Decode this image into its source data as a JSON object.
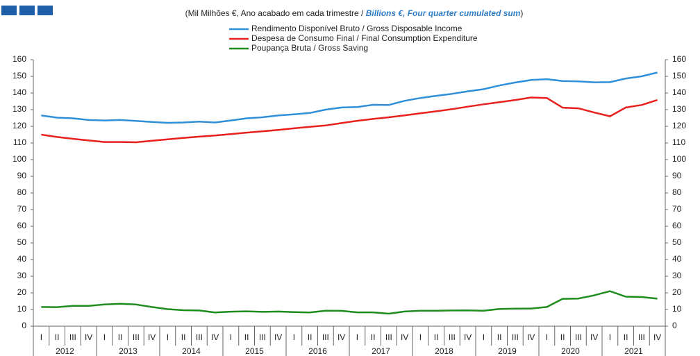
{
  "chart_data": {
    "type": "line",
    "subtitle": [
      "(Mil Milhões €, Ano acabado em cada trimestre / ",
      "Billions €, Four quarter cumulated sum",
      ")"
    ],
    "categories": [
      "I",
      "II",
      "III",
      "IV",
      "I",
      "II",
      "III",
      "IV",
      "I",
      "II",
      "III",
      "IV",
      "I",
      "II",
      "III",
      "IV",
      "I",
      "II",
      "III",
      "IV",
      "I",
      "II",
      "III",
      "IV",
      "I",
      "II",
      "III",
      "IV",
      "I",
      "II",
      "III",
      "IV",
      "I",
      "II",
      "III",
      "IV",
      "I",
      "II",
      "III",
      "IV"
    ],
    "years": [
      "2012",
      "2013",
      "2014",
      "2015",
      "2016",
      "2017",
      "2018",
      "2019",
      "2020",
      "2021"
    ],
    "series": [
      {
        "name": "Rendimento Disponível Bruto / Gross Disposable Income",
        "color": "#2f8fd8",
        "values": [
          126.5,
          125.2,
          124.8,
          123.8,
          123.5,
          123.8,
          123.2,
          122.6,
          122.1,
          122.3,
          122.8,
          122.3,
          123.5,
          124.8,
          125.4,
          126.5,
          127.2,
          128.0,
          130.0,
          131.3,
          131.6,
          132.9,
          132.8,
          135.3,
          137.0,
          138.3,
          139.5,
          141.0,
          142.3,
          144.5,
          146.3,
          147.8,
          148.3,
          147.2,
          147.0,
          146.4,
          146.5,
          148.7,
          150.0,
          152.3
        ]
      },
      {
        "name": "Despesa de Consumo Final / Final Consumption Expenditure",
        "color": "#e8201e",
        "values": [
          115.0,
          113.6,
          112.5,
          111.5,
          110.6,
          110.6,
          110.4,
          111.3,
          112.2,
          113.0,
          113.8,
          114.5,
          115.3,
          116.2,
          117.0,
          117.8,
          118.8,
          119.7,
          120.5,
          121.9,
          123.3,
          124.4,
          125.4,
          126.6,
          127.8,
          129.0,
          130.3,
          131.8,
          133.2,
          134.5,
          135.8,
          137.3,
          137.0,
          131.2,
          130.8,
          128.3,
          126.0,
          131.3,
          132.8,
          135.8
        ]
      },
      {
        "name": "Poupança Bruta / Gross Saving",
        "color": "#1e8c1e",
        "values": [
          11.5,
          11.4,
          12.2,
          12.2,
          13.0,
          13.4,
          13.0,
          11.5,
          10.2,
          9.6,
          9.4,
          8.2,
          8.7,
          8.9,
          8.6,
          8.8,
          8.4,
          8.2,
          9.3,
          9.2,
          8.3,
          8.3,
          7.5,
          8.8,
          9.3,
          9.3,
          9.4,
          9.5,
          9.3,
          10.3,
          10.5,
          10.6,
          11.5,
          16.4,
          16.6,
          18.5,
          21.0,
          17.7,
          17.5,
          16.5
        ]
      }
    ],
    "ylim": [
      0,
      160
    ],
    "yticks": [
      0,
      10,
      20,
      30,
      40,
      50,
      60,
      70,
      80,
      90,
      100,
      110,
      120,
      130,
      140,
      150,
      160
    ],
    "grid": false
  }
}
